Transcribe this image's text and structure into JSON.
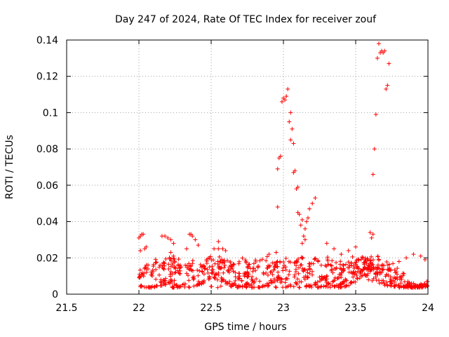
{
  "chart_data": {
    "type": "scatter",
    "title": "Day 247 of 2024, Rate Of TEC Index for receiver zouf",
    "xlabel": "GPS time / hours",
    "ylabel": "ROTI / TECUs",
    "xlim": [
      21.5,
      24
    ],
    "ylim": [
      0,
      0.14
    ],
    "xticks": [
      21.5,
      22,
      22.5,
      23,
      23.5,
      24
    ],
    "xtick_labels": [
      "21.5",
      "22",
      "22.5",
      "23",
      "23.5",
      "24"
    ],
    "yticks": [
      0,
      0.02,
      0.04,
      0.06,
      0.08,
      0.1,
      0.12,
      0.14
    ],
    "ytick_labels": [
      "0",
      "0.02",
      "0.04",
      "0.06",
      "0.08",
      "0.1",
      "0.12",
      "0.14"
    ],
    "grid": true,
    "marker": "+",
    "color": "#ff0000",
    "series": [
      {
        "name": "ROTI",
        "points": [
          [
            22.0,
            0.031
          ],
          [
            22.01,
            0.032
          ],
          [
            22.02,
            0.033
          ],
          [
            22.03,
            0.033
          ],
          [
            22.01,
            0.024
          ],
          [
            22.04,
            0.025
          ],
          [
            22.05,
            0.026
          ],
          [
            22.16,
            0.032
          ],
          [
            22.18,
            0.032
          ],
          [
            22.2,
            0.031
          ],
          [
            22.22,
            0.03
          ],
          [
            22.24,
            0.028
          ],
          [
            22.22,
            0.023
          ],
          [
            22.35,
            0.033
          ],
          [
            22.36,
            0.033
          ],
          [
            22.37,
            0.032
          ],
          [
            22.39,
            0.03
          ],
          [
            22.41,
            0.027
          ],
          [
            22.33,
            0.025
          ],
          [
            22.55,
            0.029
          ],
          [
            22.52,
            0.025
          ],
          [
            22.55,
            0.025
          ],
          [
            22.58,
            0.025
          ],
          [
            22.6,
            0.024
          ],
          [
            22.9,
            0.022
          ],
          [
            22.95,
            0.023
          ],
          [
            22.96,
            0.048
          ],
          [
            22.96,
            0.069
          ],
          [
            22.97,
            0.075
          ],
          [
            22.98,
            0.076
          ],
          [
            22.99,
            0.106
          ],
          [
            23.0,
            0.108
          ],
          [
            23.01,
            0.107
          ],
          [
            23.02,
            0.109
          ],
          [
            23.03,
            0.113
          ],
          [
            23.04,
            0.095
          ],
          [
            23.05,
            0.1
          ],
          [
            23.05,
            0.085
          ],
          [
            23.06,
            0.091
          ],
          [
            23.07,
            0.083
          ],
          [
            23.07,
            0.067
          ],
          [
            23.08,
            0.068
          ],
          [
            23.09,
            0.058
          ],
          [
            23.1,
            0.059
          ],
          [
            23.1,
            0.045
          ],
          [
            23.11,
            0.044
          ],
          [
            23.12,
            0.038
          ],
          [
            23.13,
            0.041
          ],
          [
            23.14,
            0.032
          ],
          [
            23.15,
            0.036
          ],
          [
            23.16,
            0.04
          ],
          [
            23.17,
            0.042
          ],
          [
            23.18,
            0.047
          ],
          [
            23.2,
            0.05
          ],
          [
            23.22,
            0.053
          ],
          [
            23.13,
            0.028
          ],
          [
            23.15,
            0.03
          ],
          [
            23.6,
            0.034
          ],
          [
            23.61,
            0.031
          ],
          [
            23.62,
            0.033
          ],
          [
            23.62,
            0.066
          ],
          [
            23.63,
            0.08
          ],
          [
            23.64,
            0.099
          ],
          [
            23.65,
            0.13
          ],
          [
            23.66,
            0.138
          ],
          [
            23.67,
            0.133
          ],
          [
            23.68,
            0.134
          ],
          [
            23.69,
            0.133
          ],
          [
            23.7,
            0.134
          ],
          [
            23.71,
            0.113
          ],
          [
            23.72,
            0.115
          ],
          [
            23.73,
            0.127
          ],
          [
            23.3,
            0.028
          ],
          [
            23.35,
            0.025
          ],
          [
            23.4,
            0.022
          ],
          [
            23.45,
            0.024
          ],
          [
            23.5,
            0.026
          ],
          [
            23.55,
            0.02
          ],
          [
            23.8,
            0.018
          ],
          [
            23.85,
            0.02
          ],
          [
            23.9,
            0.022
          ],
          [
            23.95,
            0.021
          ],
          [
            23.98,
            0.019
          ]
        ],
        "band": {
          "x_start": 22.0,
          "x_end": 24.0,
          "y_min": 0.003,
          "y_max": 0.022,
          "approx_count": 900
        }
      }
    ]
  }
}
